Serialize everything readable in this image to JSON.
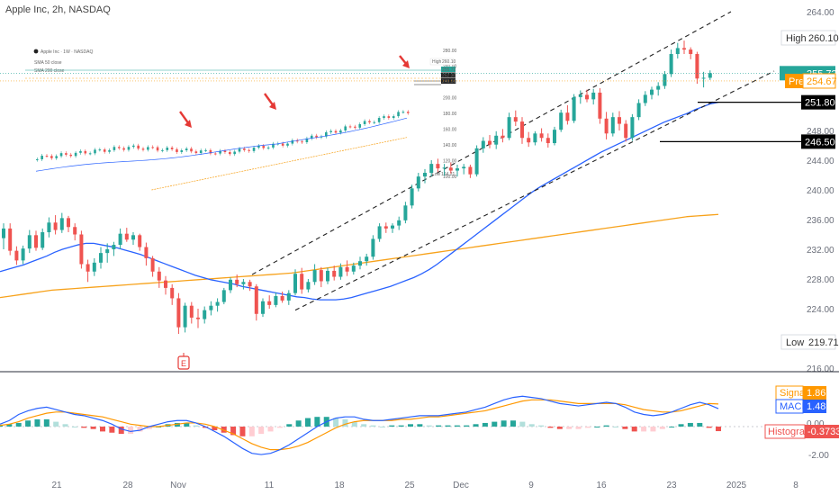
{
  "chart_data": {
    "type": "candlestick",
    "title": "Apple Inc, 2h, NASDAQ",
    "price_ticks": [
      "264.00",
      "248.00",
      "244.00",
      "240.00",
      "236.00",
      "232.00",
      "228.00",
      "224.00",
      "216.00"
    ],
    "macd_ticks": [
      "-2.00"
    ],
    "date_ticks": [
      "21",
      "28",
      "Nov",
      "11",
      "18",
      "25",
      "Dec",
      "9",
      "16",
      "23",
      "2025",
      "8"
    ],
    "ylim": [
      216,
      264
    ],
    "candles": [
      {
        "o": 233.5,
        "h": 235.5,
        "l": 232.0,
        "c": 234.8
      },
      {
        "o": 234.8,
        "h": 235.5,
        "l": 231.2,
        "c": 231.8
      },
      {
        "o": 231.8,
        "h": 232.4,
        "l": 229.9,
        "c": 230.5
      },
      {
        "o": 230.5,
        "h": 232.5,
        "l": 230.0,
        "c": 232.1
      },
      {
        "o": 232.1,
        "h": 234.6,
        "l": 231.5,
        "c": 233.9
      },
      {
        "o": 233.9,
        "h": 234.5,
        "l": 231.8,
        "c": 232.2
      },
      {
        "o": 232.2,
        "h": 234.8,
        "l": 231.9,
        "c": 234.3
      },
      {
        "o": 234.3,
        "h": 236.3,
        "l": 233.6,
        "c": 235.6
      },
      {
        "o": 235.6,
        "h": 236.6,
        "l": 234.0,
        "c": 234.6
      },
      {
        "o": 234.6,
        "h": 236.9,
        "l": 234.2,
        "c": 236.2
      },
      {
        "o": 236.2,
        "h": 236.5,
        "l": 234.3,
        "c": 235.0
      },
      {
        "o": 235.0,
        "h": 235.5,
        "l": 233.2,
        "c": 234.0
      },
      {
        "o": 234.0,
        "h": 234.5,
        "l": 229.4,
        "c": 230.0
      },
      {
        "o": 230.0,
        "h": 230.6,
        "l": 227.6,
        "c": 229.0
      },
      {
        "o": 229.0,
        "h": 230.8,
        "l": 228.4,
        "c": 230.2
      },
      {
        "o": 230.2,
        "h": 232.3,
        "l": 229.4,
        "c": 231.5
      },
      {
        "o": 231.5,
        "h": 232.8,
        "l": 230.2,
        "c": 232.0
      },
      {
        "o": 232.0,
        "h": 233.0,
        "l": 231.1,
        "c": 232.6
      },
      {
        "o": 232.6,
        "h": 234.8,
        "l": 232.0,
        "c": 234.1
      },
      {
        "o": 234.1,
        "h": 234.9,
        "l": 233.0,
        "c": 233.3
      },
      {
        "o": 233.3,
        "h": 234.3,
        "l": 232.6,
        "c": 233.9
      },
      {
        "o": 233.9,
        "h": 234.1,
        "l": 231.8,
        "c": 232.3
      },
      {
        "o": 232.3,
        "h": 232.9,
        "l": 229.8,
        "c": 230.8
      },
      {
        "o": 230.8,
        "h": 231.1,
        "l": 228.3,
        "c": 229.0
      },
      {
        "o": 229.0,
        "h": 229.6,
        "l": 226.8,
        "c": 227.8
      },
      {
        "o": 227.8,
        "h": 228.4,
        "l": 225.9,
        "c": 226.8
      },
      {
        "o": 226.8,
        "h": 227.3,
        "l": 224.5,
        "c": 225.4
      },
      {
        "o": 225.4,
        "h": 226.1,
        "l": 220.6,
        "c": 221.5
      },
      {
        "o": 221.5,
        "h": 224.8,
        "l": 220.8,
        "c": 224.4
      },
      {
        "o": 224.4,
        "h": 224.9,
        "l": 222.0,
        "c": 222.8
      },
      {
        "o": 222.8,
        "h": 224.0,
        "l": 221.4,
        "c": 222.6
      },
      {
        "o": 222.6,
        "h": 224.3,
        "l": 222.0,
        "c": 223.8
      },
      {
        "o": 223.8,
        "h": 225.0,
        "l": 223.1,
        "c": 224.4
      },
      {
        "o": 224.4,
        "h": 225.4,
        "l": 223.6,
        "c": 224.9
      },
      {
        "o": 224.9,
        "h": 226.8,
        "l": 224.6,
        "c": 226.5
      },
      {
        "o": 226.5,
        "h": 228.2,
        "l": 226.1,
        "c": 227.9
      },
      {
        "o": 227.9,
        "h": 228.6,
        "l": 226.9,
        "c": 227.3
      },
      {
        "o": 227.3,
        "h": 228.0,
        "l": 226.6,
        "c": 227.6
      },
      {
        "o": 227.6,
        "h": 227.9,
        "l": 226.4,
        "c": 227.0
      },
      {
        "o": 227.0,
        "h": 227.3,
        "l": 222.4,
        "c": 223.3
      },
      {
        "o": 223.3,
        "h": 225.4,
        "l": 222.9,
        "c": 225.0
      },
      {
        "o": 225.0,
        "h": 225.8,
        "l": 224.0,
        "c": 224.5
      },
      {
        "o": 224.5,
        "h": 226.2,
        "l": 224.2,
        "c": 225.7
      },
      {
        "o": 225.7,
        "h": 226.3,
        "l": 224.8,
        "c": 225.1
      },
      {
        "o": 225.1,
        "h": 226.5,
        "l": 224.5,
        "c": 226.1
      },
      {
        "o": 226.1,
        "h": 229.3,
        "l": 225.8,
        "c": 228.7
      },
      {
        "o": 228.7,
        "h": 229.5,
        "l": 226.0,
        "c": 226.6
      },
      {
        "o": 226.6,
        "h": 228.0,
        "l": 226.2,
        "c": 227.6
      },
      {
        "o": 227.6,
        "h": 230.0,
        "l": 227.2,
        "c": 229.2
      },
      {
        "o": 229.2,
        "h": 229.6,
        "l": 226.9,
        "c": 227.7
      },
      {
        "o": 227.7,
        "h": 229.5,
        "l": 227.3,
        "c": 229.1
      },
      {
        "o": 229.1,
        "h": 229.8,
        "l": 227.8,
        "c": 228.3
      },
      {
        "o": 228.3,
        "h": 230.1,
        "l": 227.9,
        "c": 229.6
      },
      {
        "o": 229.6,
        "h": 230.5,
        "l": 228.4,
        "c": 229.0
      },
      {
        "o": 229.0,
        "h": 230.2,
        "l": 228.6,
        "c": 229.8
      },
      {
        "o": 229.8,
        "h": 231.0,
        "l": 229.3,
        "c": 230.4
      },
      {
        "o": 230.4,
        "h": 231.4,
        "l": 229.8,
        "c": 231.0
      },
      {
        "o": 231.0,
        "h": 233.9,
        "l": 230.6,
        "c": 233.4
      },
      {
        "o": 233.4,
        "h": 235.5,
        "l": 233.0,
        "c": 235.1
      },
      {
        "o": 235.1,
        "h": 235.6,
        "l": 234.2,
        "c": 234.8
      },
      {
        "o": 234.8,
        "h": 235.5,
        "l": 234.2,
        "c": 235.2
      },
      {
        "o": 235.2,
        "h": 236.4,
        "l": 234.6,
        "c": 235.9
      },
      {
        "o": 235.9,
        "h": 238.4,
        "l": 235.5,
        "c": 237.9
      },
      {
        "o": 237.9,
        "h": 240.7,
        "l": 237.5,
        "c": 240.2
      },
      {
        "o": 240.2,
        "h": 242.3,
        "l": 239.8,
        "c": 241.8
      },
      {
        "o": 241.8,
        "h": 242.8,
        "l": 240.9,
        "c": 242.3
      },
      {
        "o": 242.3,
        "h": 244.0,
        "l": 241.8,
        "c": 243.5
      },
      {
        "o": 243.5,
        "h": 244.2,
        "l": 242.4,
        "c": 242.9
      },
      {
        "o": 242.9,
        "h": 243.5,
        "l": 241.9,
        "c": 243.0
      },
      {
        "o": 243.0,
        "h": 243.7,
        "l": 242.2,
        "c": 242.6
      },
      {
        "o": 242.6,
        "h": 243.4,
        "l": 241.8,
        "c": 242.9
      },
      {
        "o": 242.9,
        "h": 243.5,
        "l": 242.1,
        "c": 243.1
      },
      {
        "o": 243.1,
        "h": 243.4,
        "l": 241.6,
        "c": 242.1
      },
      {
        "o": 242.1,
        "h": 246.0,
        "l": 241.8,
        "c": 245.6
      },
      {
        "o": 245.6,
        "h": 247.1,
        "l": 245.0,
        "c": 246.6
      },
      {
        "o": 246.6,
        "h": 247.4,
        "l": 245.6,
        "c": 246.1
      },
      {
        "o": 246.1,
        "h": 247.9,
        "l": 245.5,
        "c": 247.3
      },
      {
        "o": 247.3,
        "h": 248.2,
        "l": 246.4,
        "c": 247.0
      },
      {
        "o": 247.0,
        "h": 250.4,
        "l": 246.7,
        "c": 249.8
      },
      {
        "o": 249.8,
        "h": 250.7,
        "l": 248.6,
        "c": 249.2
      },
      {
        "o": 249.2,
        "h": 249.8,
        "l": 246.2,
        "c": 247.0
      },
      {
        "o": 247.0,
        "h": 247.8,
        "l": 245.8,
        "c": 246.4
      },
      {
        "o": 246.4,
        "h": 247.9,
        "l": 246.0,
        "c": 247.6
      },
      {
        "o": 247.6,
        "h": 248.3,
        "l": 246.5,
        "c": 247.0
      },
      {
        "o": 247.0,
        "h": 247.6,
        "l": 245.7,
        "c": 246.3
      },
      {
        "o": 246.3,
        "h": 248.5,
        "l": 246.0,
        "c": 248.1
      },
      {
        "o": 248.1,
        "h": 250.8,
        "l": 247.8,
        "c": 250.4
      },
      {
        "o": 250.4,
        "h": 251.4,
        "l": 248.8,
        "c": 249.3
      },
      {
        "o": 249.3,
        "h": 252.9,
        "l": 249.0,
        "c": 252.5
      },
      {
        "o": 252.5,
        "h": 253.4,
        "l": 251.6,
        "c": 252.8
      },
      {
        "o": 252.8,
        "h": 253.5,
        "l": 251.8,
        "c": 252.2
      },
      {
        "o": 252.2,
        "h": 253.6,
        "l": 251.5,
        "c": 253.1
      },
      {
        "o": 253.1,
        "h": 253.7,
        "l": 248.9,
        "c": 249.6
      },
      {
        "o": 249.6,
        "h": 250.5,
        "l": 246.8,
        "c": 247.6
      },
      {
        "o": 247.6,
        "h": 250.4,
        "l": 247.2,
        "c": 249.8
      },
      {
        "o": 249.8,
        "h": 250.6,
        "l": 248.0,
        "c": 248.9
      },
      {
        "o": 248.9,
        "h": 249.4,
        "l": 246.5,
        "c": 247.0
      },
      {
        "o": 247.0,
        "h": 250.2,
        "l": 246.6,
        "c": 249.8
      },
      {
        "o": 249.8,
        "h": 252.2,
        "l": 249.4,
        "c": 251.7
      },
      {
        "o": 251.7,
        "h": 253.3,
        "l": 251.3,
        "c": 252.8
      },
      {
        "o": 252.8,
        "h": 253.9,
        "l": 252.2,
        "c": 253.5
      },
      {
        "o": 253.5,
        "h": 254.5,
        "l": 252.7,
        "c": 254.0
      },
      {
        "o": 254.0,
        "h": 256.0,
        "l": 253.6,
        "c": 255.6
      },
      {
        "o": 255.6,
        "h": 258.9,
        "l": 255.2,
        "c": 258.3
      },
      {
        "o": 258.3,
        "h": 259.8,
        "l": 257.7,
        "c": 259.1
      },
      {
        "o": 259.1,
        "h": 260.1,
        "l": 258.3,
        "c": 258.9
      },
      {
        "o": 258.9,
        "h": 259.2,
        "l": 257.6,
        "c": 258.3
      },
      {
        "o": 258.3,
        "h": 258.6,
        "l": 254.3,
        "c": 255.0
      },
      {
        "o": 255.0,
        "h": 255.9,
        "l": 253.8,
        "c": 255.1
      },
      {
        "o": 255.1,
        "h": 256.1,
        "l": 254.8,
        "c": 255.72
      }
    ],
    "sma50": [
      229.0,
      229.3,
      229.6,
      229.9,
      230.3,
      230.7,
      231.1,
      231.6,
      232.0,
      232.3,
      232.6,
      232.8,
      232.8,
      232.6,
      232.4,
      232.2,
      231.9,
      231.6,
      231.3,
      230.9,
      230.5,
      230.1,
      229.7,
      229.3,
      228.9,
      228.5,
      228.2,
      227.9,
      227.7,
      227.5,
      227.3,
      227.0,
      226.8,
      226.6,
      226.4,
      226.2,
      226.0,
      225.8,
      225.6,
      225.5,
      225.3,
      225.2,
      225.2,
      225.2,
      225.3,
      225.5,
      225.8,
      226.1,
      226.4,
      226.7,
      227.0,
      227.4,
      227.8,
      228.2,
      228.7,
      229.3,
      230.0,
      230.8,
      231.6,
      232.4,
      233.2,
      234.0,
      234.8,
      235.6,
      236.4,
      237.2,
      238.0,
      238.8,
      239.6,
      240.3,
      240.9,
      241.5,
      242.1,
      242.7,
      243.3,
      243.9,
      244.5,
      245.1,
      245.6,
      246.1,
      246.6,
      247.1,
      247.6,
      248.1,
      248.6,
      249.1,
      249.5,
      249.9,
      250.3,
      250.8,
      251.2,
      251.6,
      251.8
    ],
    "sma200": [
      225.5,
      225.7,
      225.9,
      226.1,
      226.3,
      226.5,
      226.6,
      226.7,
      226.8,
      226.9,
      227.0,
      227.1,
      227.2,
      227.3,
      227.4,
      227.5,
      227.6,
      227.7,
      227.8,
      227.9,
      228.0,
      228.1,
      228.2,
      228.3,
      228.4,
      228.5,
      228.6,
      228.7,
      228.8,
      229.0,
      229.2,
      229.4,
      229.6,
      229.8,
      230.0,
      230.2,
      230.4,
      230.6,
      230.8,
      231.0,
      231.2,
      231.4,
      231.6,
      231.8,
      232.0,
      232.2,
      232.4,
      232.6,
      232.8,
      233.0,
      233.2,
      233.4,
      233.6,
      233.8,
      234.0,
      234.2,
      234.4,
      234.6,
      234.8,
      235.0,
      235.2,
      235.4,
      235.6,
      235.8,
      236.0,
      236.2,
      236.4,
      236.5,
      236.6,
      236.7
    ],
    "channel": {
      "upper": [
        [
          280,
          228.6
        ],
        [
          812,
          264.0
        ]
      ],
      "lower": [
        [
          328,
          223.8
        ],
        [
          860,
          256.0
        ]
      ]
    },
    "levels": [
      {
        "label": "High",
        "value": "260.10"
      },
      {
        "label": "",
        "value": "255.72",
        "tag": "last"
      },
      {
        "label": "Pre",
        "value": "254.67",
        "tag": "pre"
      },
      {
        "label": "",
        "value": "251.80",
        "tag": "black"
      },
      {
        "label": "",
        "value": "246.50",
        "tag": "black"
      },
      {
        "label": "Low",
        "value": "219.71"
      }
    ],
    "macd": {
      "ylim": [
        -2.6,
        3.2
      ],
      "signal_label": "Signal",
      "signal_value": "1.86",
      "macd_label": "MACD",
      "macd_value": "1.48",
      "hist_label": "Histogram",
      "hist_value": "-0.3733",
      "zero_label": "0.00",
      "macd_line": [
        0.2,
        0.5,
        1.0,
        1.3,
        1.5,
        1.6,
        1.4,
        1.2,
        1.0,
        0.9,
        0.7,
        0.5,
        0.2,
        -0.2,
        -0.4,
        -0.3,
        0.0,
        0.2,
        0.4,
        0.5,
        0.5,
        0.3,
        0.0,
        -0.4,
        -0.8,
        -1.3,
        -1.8,
        -2.2,
        -2.3,
        -2.2,
        -1.9,
        -1.5,
        -1.0,
        -0.5,
        0.0,
        0.4,
        0.7,
        0.8,
        0.8,
        0.6,
        0.5,
        0.5,
        0.6,
        0.7,
        0.8,
        0.9,
        0.9,
        0.9,
        1.0,
        1.1,
        1.2,
        1.4,
        1.6,
        1.9,
        2.2,
        2.4,
        2.5,
        2.4,
        2.3,
        2.1,
        1.9,
        1.8,
        1.7,
        1.8,
        1.9,
        2.0,
        1.9,
        1.6,
        1.2,
        1.0,
        0.9,
        1.0,
        1.2,
        1.5,
        1.8,
        2.0,
        1.8,
        1.48
      ],
      "signal_line": [
        0.1,
        0.2,
        0.4,
        0.7,
        0.9,
        1.1,
        1.2,
        1.2,
        1.1,
        1.0,
        0.9,
        0.8,
        0.6,
        0.4,
        0.2,
        0.1,
        0.0,
        0.0,
        0.1,
        0.2,
        0.3,
        0.3,
        0.2,
        0.0,
        -0.3,
        -0.6,
        -1.0,
        -1.4,
        -1.7,
        -1.9,
        -1.9,
        -1.8,
        -1.6,
        -1.3,
        -0.9,
        -0.5,
        -0.1,
        0.2,
        0.4,
        0.5,
        0.5,
        0.5,
        0.5,
        0.6,
        0.6,
        0.7,
        0.8,
        0.8,
        0.9,
        1.0,
        1.1,
        1.2,
        1.3,
        1.5,
        1.7,
        1.9,
        2.1,
        2.2,
        2.2,
        2.2,
        2.1,
        2.0,
        1.9,
        1.9,
        1.9,
        1.9,
        1.9,
        1.8,
        1.6,
        1.4,
        1.3,
        1.2,
        1.2,
        1.3,
        1.5,
        1.7,
        1.9,
        1.86
      ],
      "histogram": [
        0.1,
        0.2,
        0.3,
        0.5,
        0.6,
        0.6,
        0.4,
        0.2,
        0.0,
        -0.1,
        -0.2,
        -0.4,
        -0.5,
        -0.6,
        -0.6,
        -0.4,
        -0.2,
        0.0,
        0.2,
        0.3,
        0.3,
        0.1,
        -0.1,
        -0.3,
        -0.5,
        -0.7,
        -0.8,
        -0.8,
        -0.6,
        -0.4,
        -0.1,
        0.2,
        0.5,
        0.7,
        0.8,
        0.8,
        0.7,
        0.6,
        0.4,
        0.2,
        0.1,
        0.0,
        0.1,
        0.1,
        0.2,
        0.2,
        0.1,
        0.1,
        0.1,
        0.1,
        0.1,
        0.2,
        0.3,
        0.4,
        0.5,
        0.5,
        0.4,
        0.2,
        0.1,
        -0.1,
        -0.2,
        -0.2,
        -0.2,
        -0.1,
        0.0,
        0.1,
        0.0,
        -0.2,
        -0.4,
        -0.4,
        -0.4,
        -0.2,
        0.0,
        0.2,
        0.3,
        0.3,
        -0.1,
        -0.3733
      ]
    },
    "inset": {
      "title": "Apple Inc · 1W · NASDAQ",
      "legend": [
        "SMA 50 close",
        "SMA 200 close"
      ],
      "high_label": "High",
      "high_value": "260.10",
      "low_label": "Low",
      "low_value": "164.21",
      "price_ticks": [
        "280.00",
        "240.00",
        "220.00",
        "200.00",
        "180.00",
        "160.00",
        "140.00",
        "120.00",
        "100.00"
      ],
      "tags": [
        "255.72",
        "252.30",
        "246.50"
      ]
    },
    "annotations": [
      "earnings-marker"
    ]
  },
  "colors": {
    "up": "#26a69a",
    "down": "#ef5350",
    "sma50": "#2962ff",
    "sma200": "#f7a21b",
    "signal": "#ff9800",
    "macd": "#2962ff",
    "arrow": "#e53935"
  }
}
